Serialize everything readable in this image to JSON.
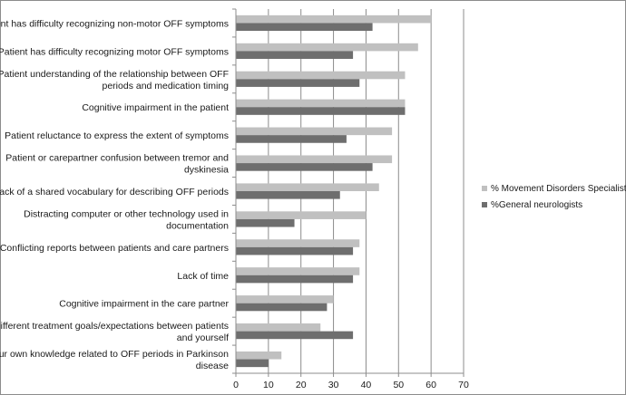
{
  "chart_data": {
    "type": "bar",
    "orientation": "horizontal",
    "categories": [
      [
        "Patient has difficulty recognizing non-motor  OFF symptoms"
      ],
      [
        "Patient has difficulty recognizing motor  OFF symptoms"
      ],
      [
        "Patient understanding of the relationship between  OFF",
        "periods and medication timing"
      ],
      [
        "Cognitive impairment in the patient"
      ],
      [
        "Patient reluctance to express the extent of symptoms"
      ],
      [
        "Patient or carepartner confusion between tremor and",
        "dyskinesia"
      ],
      [
        "Lack of a shared vocabulary for describing  OFF periods"
      ],
      [
        "Distracting computer or other technology used in",
        "documentation"
      ],
      [
        "Conflicting reports between patients and care partners"
      ],
      [
        "Lack of time"
      ],
      [
        "Cognitive impairment in the care partner"
      ],
      [
        "Different treatment goals/expectations  between patients",
        "and yourself"
      ],
      [
        "Your own knowledge related to  OFF periods in Parkinson",
        "disease"
      ]
    ],
    "series": [
      {
        "name": "% Movement Disorders Specialists",
        "color": "#c0c0c0",
        "values": [
          60,
          56,
          52,
          52,
          48,
          48,
          44,
          40,
          38,
          38,
          30,
          26,
          14
        ]
      },
      {
        "name": "%General neurologists",
        "color": "#6e6e6e",
        "values": [
          42,
          36,
          38,
          52,
          34,
          42,
          32,
          18,
          36,
          36,
          28,
          36,
          10
        ]
      }
    ],
    "xlim": [
      0,
      70
    ],
    "xticks": [
      0,
      10,
      20,
      30,
      40,
      50,
      60,
      70
    ],
    "grid": "vertical",
    "legend_position": "right"
  }
}
